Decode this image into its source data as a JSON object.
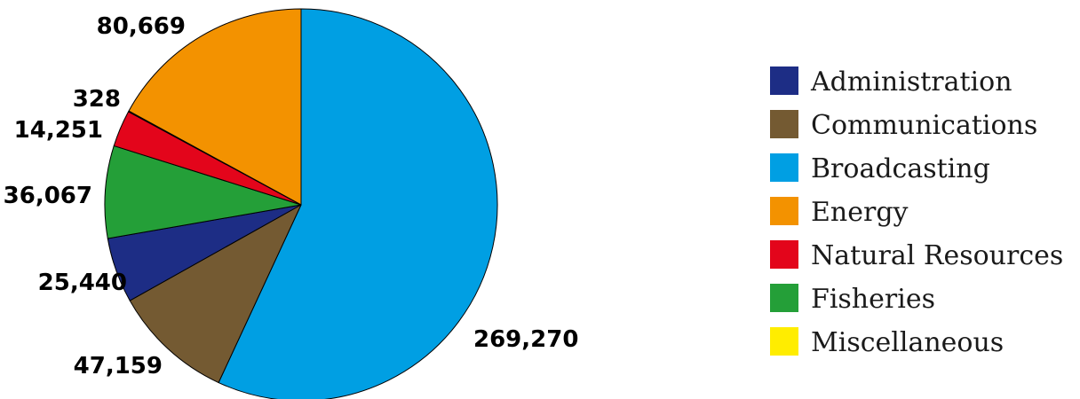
{
  "chart_data": {
    "type": "pie",
    "title": "",
    "legend_position": "right",
    "slices": [
      {
        "label": "Broadcasting",
        "value": 269270,
        "value_label": "269,270",
        "color": "#009fe3"
      },
      {
        "label": "Communications",
        "value": 47159,
        "value_label": "47,159",
        "color": "#745a32"
      },
      {
        "label": "Administration",
        "value": 25440,
        "value_label": "25,440",
        "color": "#1d2d85"
      },
      {
        "label": "Fisheries",
        "value": 36067,
        "value_label": "36,067",
        "color": "#249f38"
      },
      {
        "label": "Natural Resources",
        "value": 14251,
        "value_label": "14,251",
        "color": "#e3051b"
      },
      {
        "label": "Miscellaneous",
        "value": 328,
        "value_label": "328",
        "color": "#ffed00"
      },
      {
        "label": "Energy",
        "value": 80669,
        "value_label": "80,669",
        "color": "#f39200"
      }
    ],
    "legend": [
      {
        "label": "Administration",
        "color": "#1d2d85"
      },
      {
        "label": "Communications",
        "color": "#745a32"
      },
      {
        "label": "Broadcasting",
        "color": "#009fe3"
      },
      {
        "label": "Energy",
        "color": "#f39200"
      },
      {
        "label": "Natural Resources",
        "color": "#e3051b"
      },
      {
        "label": "Fisheries",
        "color": "#249f38"
      },
      {
        "label": "Miscellaneous",
        "color": "#ffed00"
      }
    ]
  }
}
